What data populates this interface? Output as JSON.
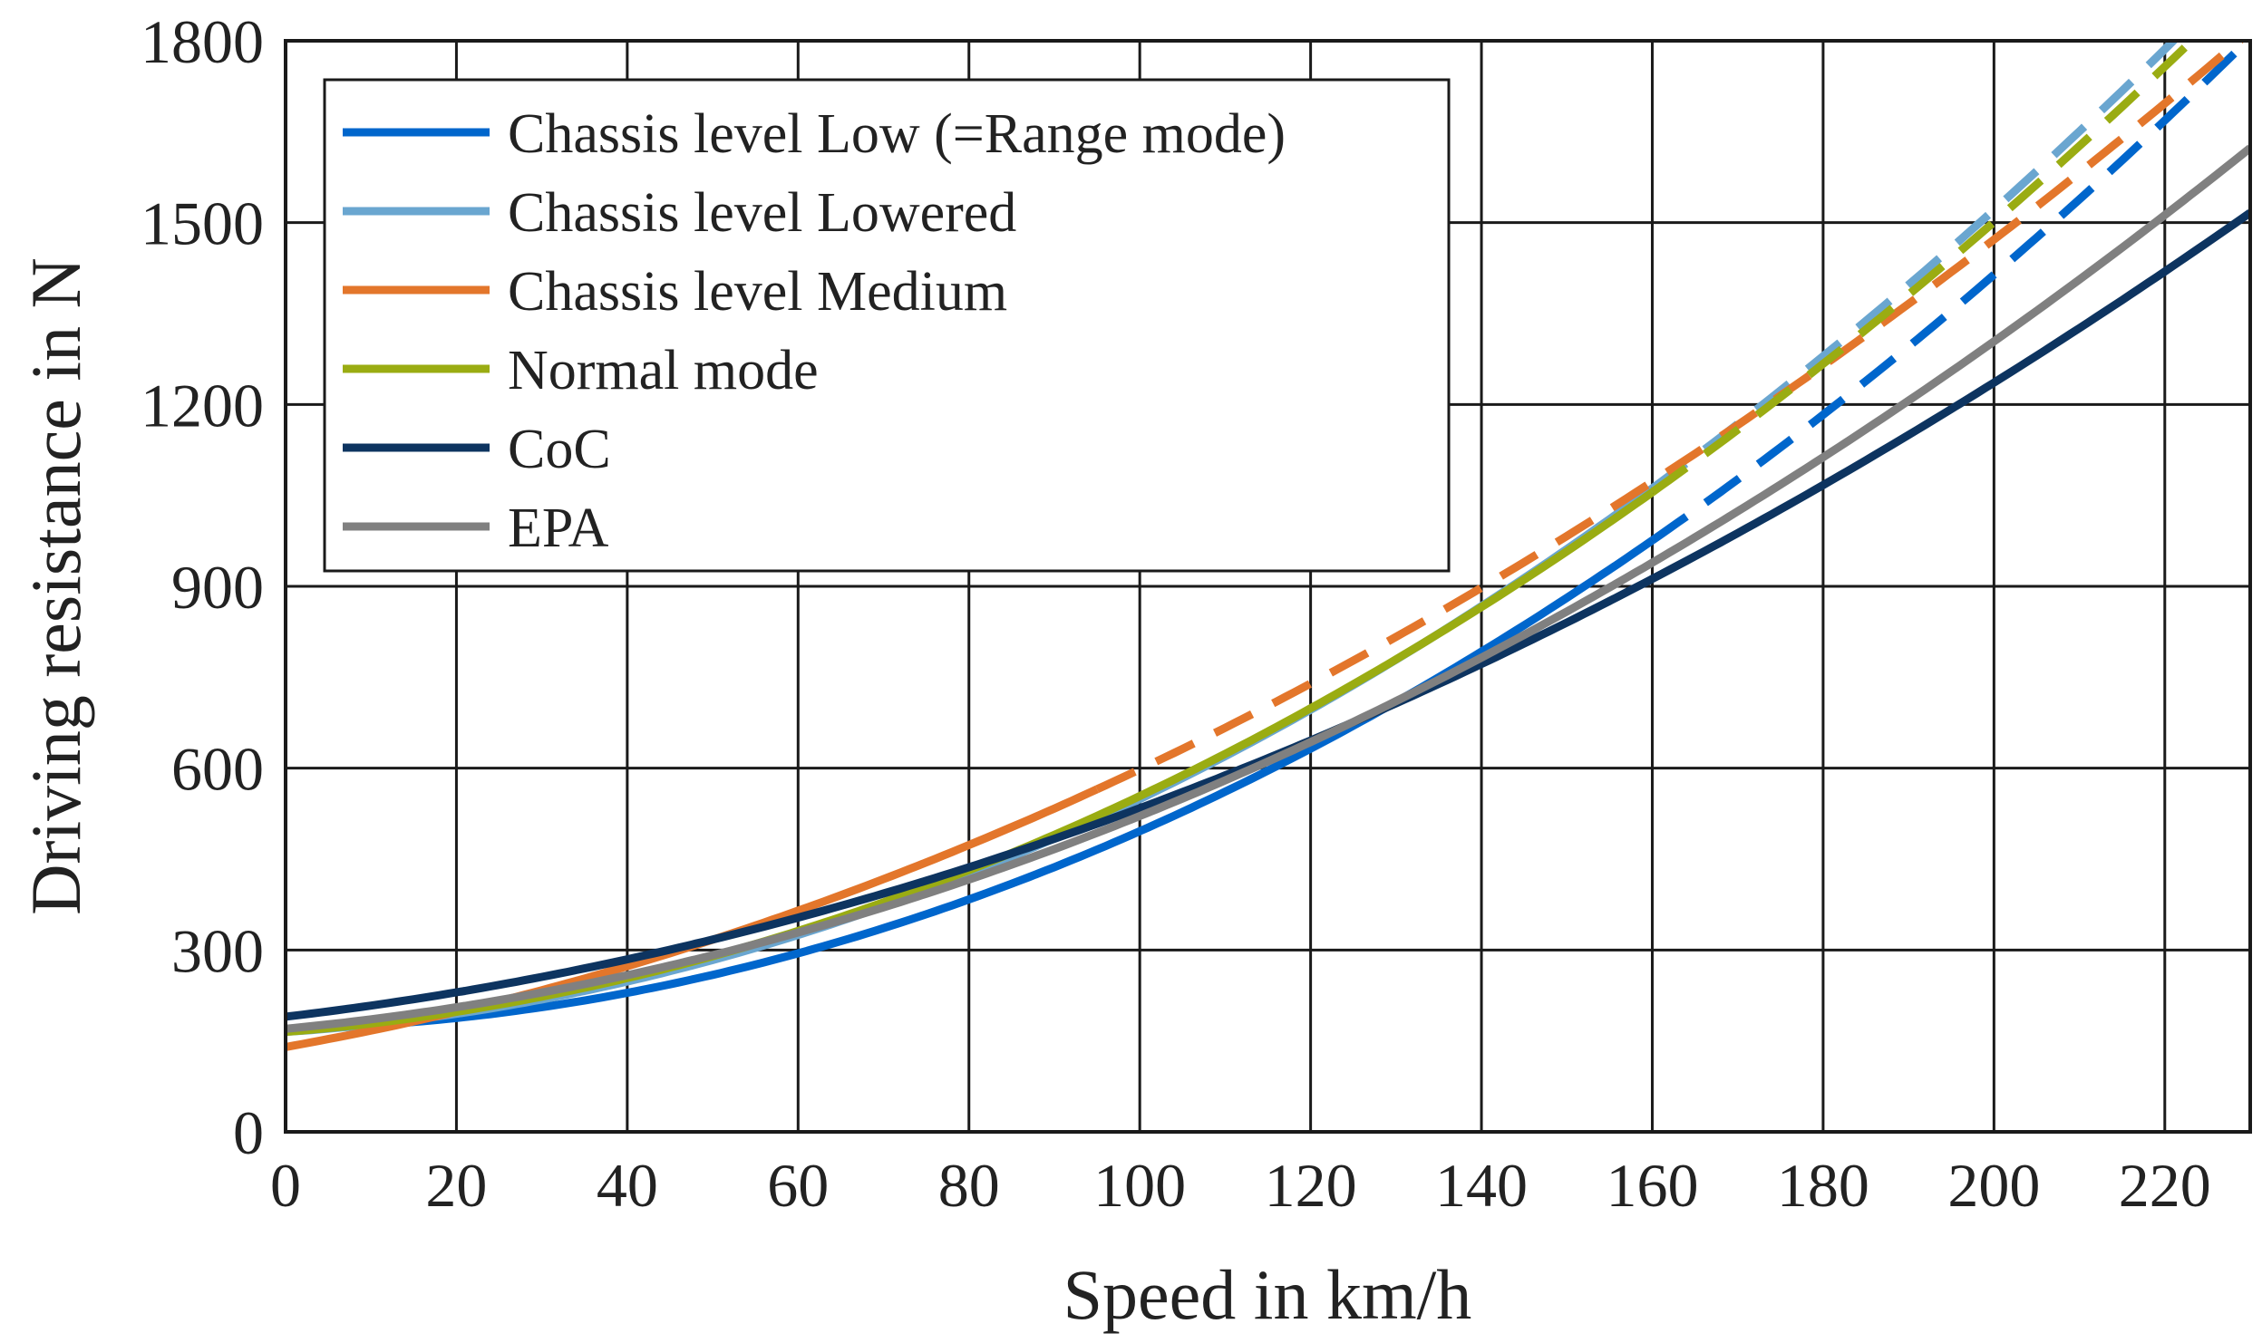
{
  "chart_data": {
    "type": "line",
    "title": "",
    "xlabel": "Speed in km/h",
    "ylabel": "Driving resistance in N",
    "xlim": [
      0,
      230
    ],
    "ylim": [
      0,
      1800
    ],
    "xticks": [
      0,
      20,
      40,
      60,
      80,
      100,
      120,
      140,
      160,
      180,
      200,
      220
    ],
    "xtick_labels": [
      "0",
      "20",
      "40",
      "60",
      "80",
      "100",
      "120",
      "140",
      "160",
      "180",
      "200",
      "220"
    ],
    "yticks": [
      0,
      300,
      600,
      900,
      1200,
      1500,
      1800
    ],
    "ytick_labels": [
      "0",
      "300",
      "600",
      "900",
      "1200",
      "1500",
      "1800"
    ],
    "grid": true,
    "legend_position": "top-left",
    "series": [
      {
        "name": "Chassis level Low (=Range mode)",
        "color": "#0066cc",
        "coefficients": {
          "f0": 170,
          "f1": 0.3,
          "f2": 0.0296
        },
        "solid_until": 160,
        "x_end": 230
      },
      {
        "name": "Chassis level Lowered",
        "color": "#6aa6d0",
        "coefficients": {
          "f0": 165,
          "f1": 0.9,
          "f2": 0.0294
        },
        "solid_until": 160,
        "x_end": 230
      },
      {
        "name": "Chassis level Medium",
        "color": "#e3762b",
        "coefficients": {
          "f0": 140,
          "f1": 2.5,
          "f2": 0.0208
        },
        "solid_until": 95,
        "x_end": 230
      },
      {
        "name": "Normal mode",
        "color": "#9aac12",
        "coefficients": {
          "f0": 165,
          "f1": 1.1,
          "f2": 0.0279
        },
        "solid_until": 160,
        "x_end": 230
      },
      {
        "name": "CoC",
        "color": "#0d3460",
        "coefficients": {
          "f0": 190,
          "f1": 1.65,
          "f2": 0.0179
        },
        "solid_until": 230,
        "x_end": 230
      },
      {
        "name": "EPA",
        "color": "#808080",
        "coefficients": {
          "f0": 170,
          "f1": 1.35,
          "f2": 0.0216
        },
        "solid_until": 230,
        "x_end": 230
      }
    ]
  }
}
